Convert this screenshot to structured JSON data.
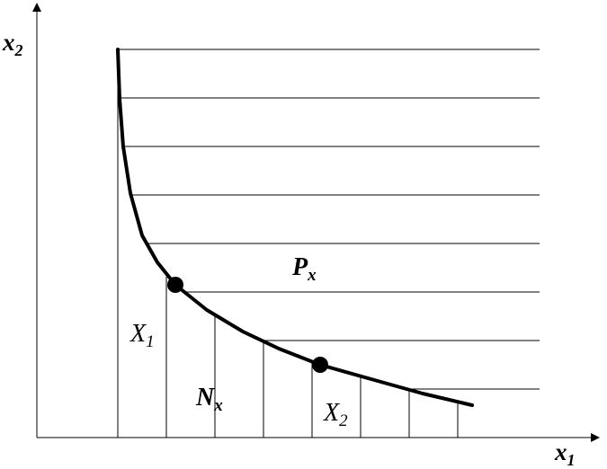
{
  "axes": {
    "y_label": {
      "text": "x",
      "subscript": "2"
    },
    "x_label": {
      "text": "x",
      "subscript": "1"
    }
  },
  "labels": [
    {
      "text": "X",
      "subscript": "1"
    },
    {
      "text": "P",
      "subscript": "x"
    },
    {
      "text": "N",
      "subscript": "x"
    },
    {
      "text": "X",
      "subscript": "2"
    }
  ]
}
